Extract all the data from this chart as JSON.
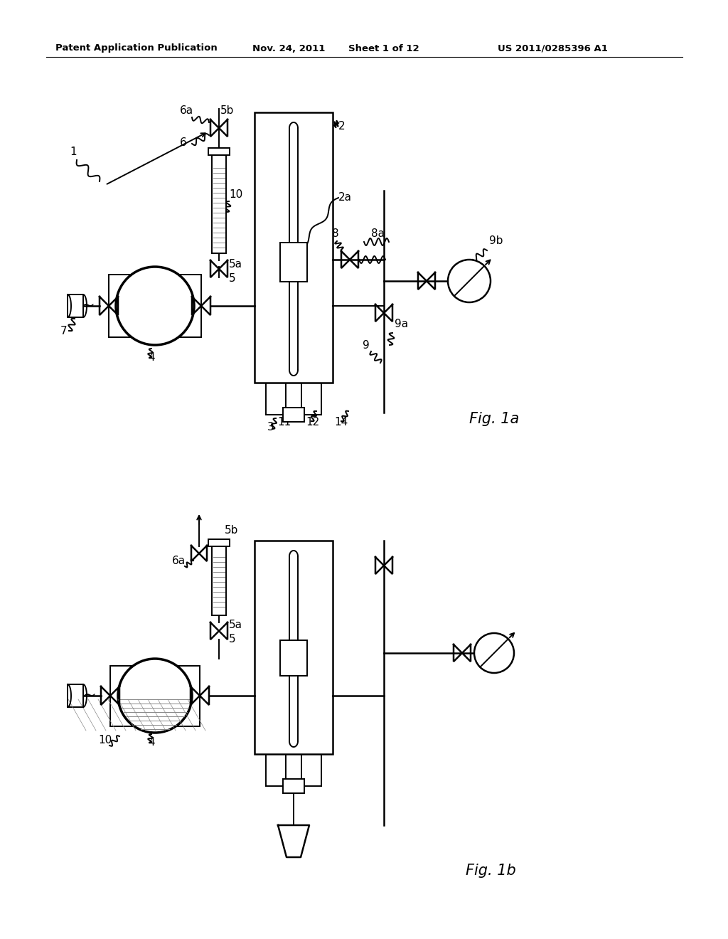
{
  "background_color": "#ffffff",
  "header_text": "Patent Application Publication",
  "header_date": "Nov. 24, 2011",
  "header_sheet": "Sheet 1 of 12",
  "header_patent": "US 2011/0285396 A1",
  "fig1a_label": "Fig. 1a",
  "fig1b_label": "Fig. 1b"
}
